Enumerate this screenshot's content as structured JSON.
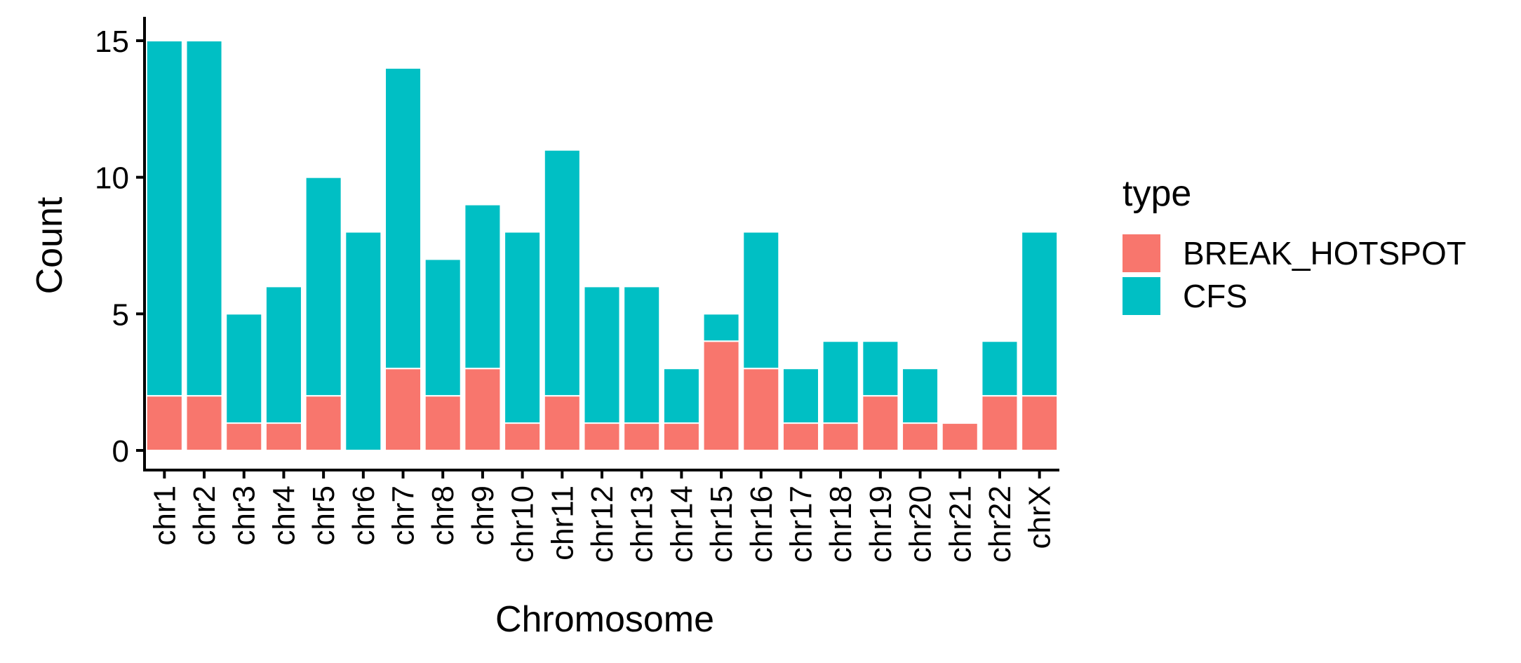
{
  "chart_data": {
    "type": "bar",
    "stacked": true,
    "xlabel": "Chromosome",
    "ylabel": "Count",
    "categories": [
      "chr1",
      "chr2",
      "chr3",
      "chr4",
      "chr5",
      "chr6",
      "chr7",
      "chr8",
      "chr9",
      "chr10",
      "chr11",
      "chr12",
      "chr13",
      "chr14",
      "chr15",
      "chr16",
      "chr17",
      "chr18",
      "chr19",
      "chr20",
      "chr21",
      "chr22",
      "chrX"
    ],
    "series": [
      {
        "name": "BREAK_HOTSPOT",
        "color": "#F8766D",
        "values": [
          2,
          2,
          1,
          1,
          2,
          0,
          3,
          2,
          3,
          1,
          2,
          1,
          1,
          1,
          4,
          3,
          1,
          1,
          2,
          1,
          1,
          2,
          2
        ]
      },
      {
        "name": "CFS",
        "color": "#00BFC4",
        "values": [
          13,
          13,
          4,
          5,
          8,
          8,
          11,
          5,
          6,
          7,
          9,
          5,
          5,
          2,
          1,
          5,
          2,
          3,
          2,
          2,
          0,
          2,
          6
        ]
      }
    ],
    "ylim": [
      0,
      15.8
    ],
    "yticks": [
      0,
      5,
      10,
      15
    ],
    "grid": false,
    "legend": {
      "title": "type",
      "position": "right"
    }
  }
}
